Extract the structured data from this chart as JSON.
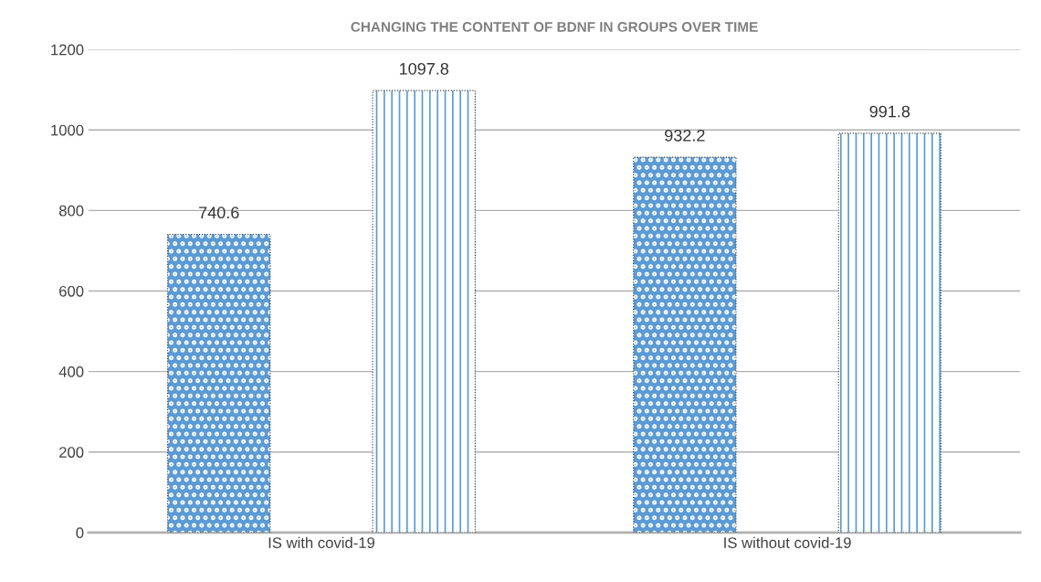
{
  "chart_data": {
    "type": "bar",
    "title": "CHANGING THE CONTENT OF BDNF IN GROUPS OVER TIME",
    "categories": [
      "IS with covid-19",
      "IS without covid-19"
    ],
    "series": [
      {
        "color": "#5b9bd5",
        "values": [
          740.6,
          932.2
        ]
      },
      {
        "color": "#5b9bd5",
        "values": [
          1097.8,
          991.8
        ]
      }
    ],
    "ylim": [
      0,
      1200
    ],
    "yticks": [
      0,
      200,
      400,
      600,
      800,
      1000,
      1200
    ],
    "grid": "y",
    "data_labels": true
  }
}
